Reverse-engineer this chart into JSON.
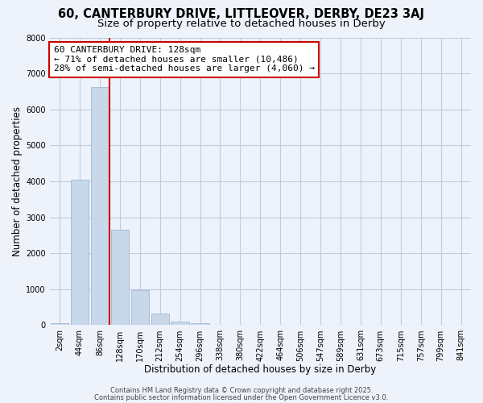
{
  "title": "60, CANTERBURY DRIVE, LITTLEOVER, DERBY, DE23 3AJ",
  "subtitle": "Size of property relative to detached houses in Derby",
  "xlabel": "Distribution of detached houses by size in Derby",
  "ylabel": "Number of detached properties",
  "bin_labels": [
    "2sqm",
    "44sqm",
    "86sqm",
    "128sqm",
    "170sqm",
    "212sqm",
    "254sqm",
    "296sqm",
    "338sqm",
    "380sqm",
    "422sqm",
    "464sqm",
    "506sqm",
    "547sqm",
    "589sqm",
    "631sqm",
    "673sqm",
    "715sqm",
    "757sqm",
    "799sqm",
    "841sqm"
  ],
  "bar_heights": [
    50,
    4040,
    6620,
    2650,
    980,
    330,
    110,
    50,
    0,
    0,
    0,
    0,
    0,
    0,
    0,
    0,
    0,
    0,
    0,
    0,
    0
  ],
  "bar_color": "#c8d8eb",
  "bar_edgecolor": "#a0b8d0",
  "vline_color": "#cc0000",
  "annotation_text": "60 CANTERBURY DRIVE: 128sqm\n← 71% of detached houses are smaller (10,486)\n28% of semi-detached houses are larger (4,060) →",
  "annotation_box_color": "#ffffff",
  "annotation_box_edgecolor": "#cc0000",
  "ylim": [
    0,
    8000
  ],
  "yticks": [
    0,
    1000,
    2000,
    3000,
    4000,
    5000,
    6000,
    7000,
    8000
  ],
  "footer1": "Contains HM Land Registry data © Crown copyright and database right 2025.",
  "footer2": "Contains public sector information licensed under the Open Government Licence v3.0.",
  "background_color": "#eef2fb",
  "grid_color": "#c0ccdf",
  "title_fontsize": 10.5,
  "subtitle_fontsize": 9.5,
  "axis_label_fontsize": 8.5,
  "tick_fontsize": 7,
  "annotation_fontsize": 8,
  "footer_fontsize": 6
}
